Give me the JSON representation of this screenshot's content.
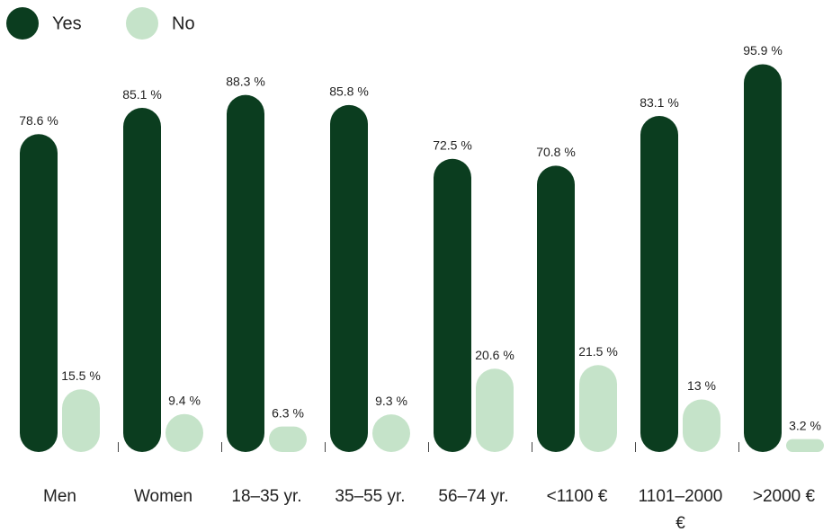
{
  "chart_data": {
    "type": "bar",
    "categories": [
      "Men",
      "Women",
      "18–35 yr.",
      "35–55 yr.",
      "56–74 yr.",
      "<1100 €",
      "1101–2000 €",
      ">2000 €"
    ],
    "series": [
      {
        "name": "Yes",
        "color": "#0b3d1f",
        "values": [
          78.6,
          85.1,
          88.3,
          85.8,
          72.5,
          70.8,
          83.1,
          95.9
        ],
        "value_labels": [
          "78.6 %",
          "85.1 %",
          "88.3 %",
          "85.8 %",
          "72.5 %",
          "70.8 %",
          "83.1 %",
          "95.9 %"
        ]
      },
      {
        "name": "No",
        "color": "#c5e3c9",
        "values": [
          15.5,
          9.4,
          6.3,
          9.3,
          20.6,
          21.5,
          13,
          3.2
        ],
        "value_labels": [
          "15.5 %",
          "9.4 %",
          "6.3 %",
          "9.3 %",
          "20.6 %",
          "21.5 %",
          "13 %",
          "3.2 %"
        ]
      }
    ],
    "ylim": [
      0,
      100
    ],
    "legend": "top-left"
  }
}
